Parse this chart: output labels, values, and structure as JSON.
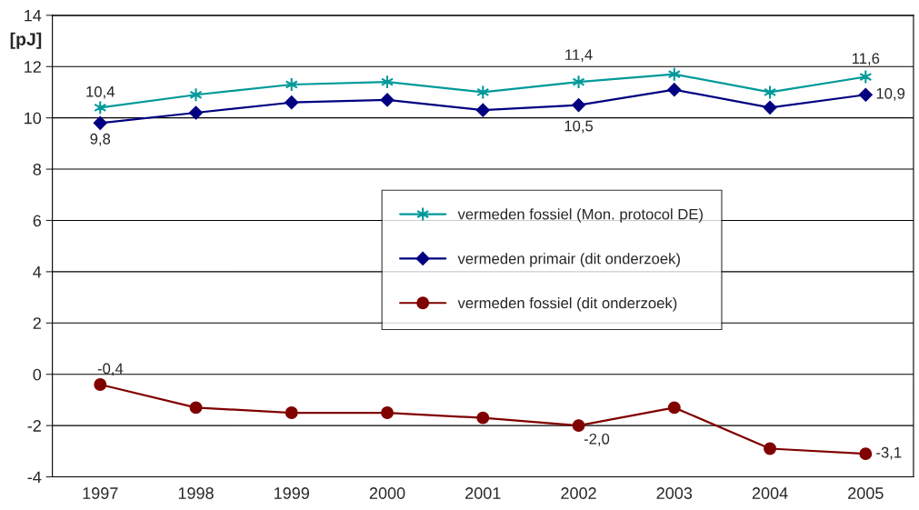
{
  "chart_data": {
    "type": "line",
    "ylabel": "[pJ]",
    "categories": [
      "1997",
      "1998",
      "1999",
      "2000",
      "2001",
      "2002",
      "2003",
      "2004",
      "2005"
    ],
    "ylim": [
      -4,
      14
    ],
    "yticks": [
      -4,
      -2,
      0,
      2,
      4,
      6,
      8,
      10,
      12,
      14
    ],
    "grid": "y",
    "legend": "center",
    "series": [
      {
        "name": "vermeden fossiel (Mon. protocol DE)",
        "color": "#009999",
        "marker": "cross",
        "values": [
          10.4,
          10.9,
          11.3,
          11.4,
          11.0,
          11.4,
          11.7,
          11.0,
          11.6
        ],
        "value_labels": [
          "10,4",
          null,
          null,
          null,
          null,
          "11,4",
          null,
          null,
          "11,6"
        ]
      },
      {
        "name": "vermeden primair (dit onderzoek)",
        "color": "#000080",
        "marker": "diamond",
        "values": [
          9.8,
          10.2,
          10.6,
          10.7,
          10.3,
          10.5,
          11.1,
          10.4,
          10.9
        ],
        "value_labels": [
          "9,8",
          null,
          null,
          null,
          null,
          "10,5",
          null,
          null,
          "10,9"
        ]
      },
      {
        "name": "vermeden fossiel (dit onderzoek)",
        "color": "#800000",
        "marker": "circle",
        "values": [
          -0.4,
          -1.3,
          -1.5,
          -1.5,
          -1.7,
          -2.0,
          -1.3,
          -2.9,
          -3.1
        ],
        "value_labels": [
          "-0,4",
          null,
          null,
          null,
          null,
          "-2,0",
          null,
          null,
          "-3,1"
        ]
      }
    ]
  }
}
